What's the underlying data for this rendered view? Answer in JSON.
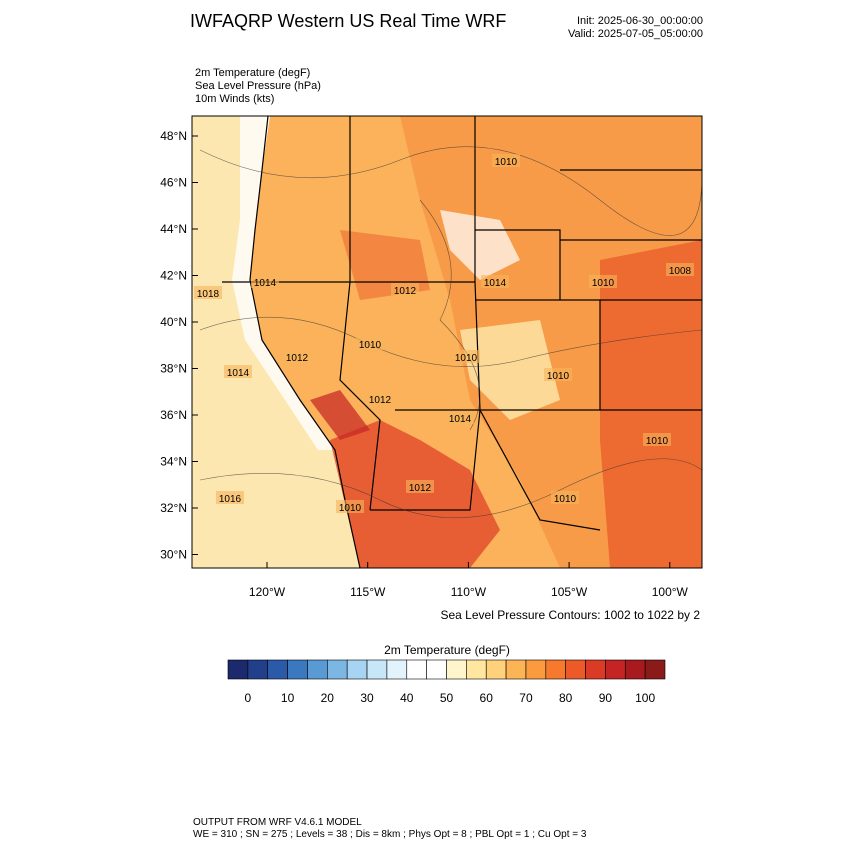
{
  "header": {
    "title": "IWFAQRP Western US Real Time WRF",
    "init": "Init: 2025-06-30_00:00:00",
    "valid": "Valid: 2025-07-05_05:00:00"
  },
  "fields": [
    "2m Temperature   (degF)",
    "Sea Level Pressure   (hPa)",
    "10m Winds   (kts)"
  ],
  "map": {
    "lat_labels": [
      "48°N",
      "46°N",
      "44°N",
      "42°N",
      "40°N",
      "38°N",
      "36°N",
      "34°N",
      "32°N",
      "30°N"
    ],
    "lon_labels": [
      "120°W",
      "115°W",
      "110°W",
      "105°W",
      "100°W"
    ],
    "contour_labels": [
      "1018",
      "1010",
      "1014",
      "1012",
      "1014",
      "1010",
      "1008",
      "1010",
      "1012",
      "1014",
      "1010",
      "1010",
      "1012",
      "1014",
      "1010",
      "1016",
      "1010",
      "1010",
      "1012"
    ],
    "contour_note": "Sea Level Pressure Contours: 1002 to 1022 by 2"
  },
  "colorbar": {
    "title": "2m Temperature  (degF)",
    "colors": [
      "#1a2a6c",
      "#223f8c",
      "#2b5aa8",
      "#3a78c0",
      "#5a9ad4",
      "#7cb6e2",
      "#a6d4f2",
      "#c7e6f8",
      "#e3f3fc",
      "#ffffff",
      "#ffffff",
      "#fff6cc",
      "#ffe7a0",
      "#fed17a",
      "#fdb455",
      "#fb9a3e",
      "#f6792d",
      "#ec5a28",
      "#db3a24",
      "#c42424",
      "#a81a1e",
      "#8b1a1a"
    ],
    "labels": [
      "0",
      "10",
      "20",
      "30",
      "40",
      "50",
      "60",
      "70",
      "80",
      "90",
      "100"
    ]
  },
  "footer": [
    "OUTPUT FROM WRF V4.6.1 MODEL",
    "WE = 310 ; SN = 275 ; Levels = 38 ; Dis = 8km ; Phys Opt = 8 ; PBL Opt = 1 ; Cu Opt = 3"
  ]
}
